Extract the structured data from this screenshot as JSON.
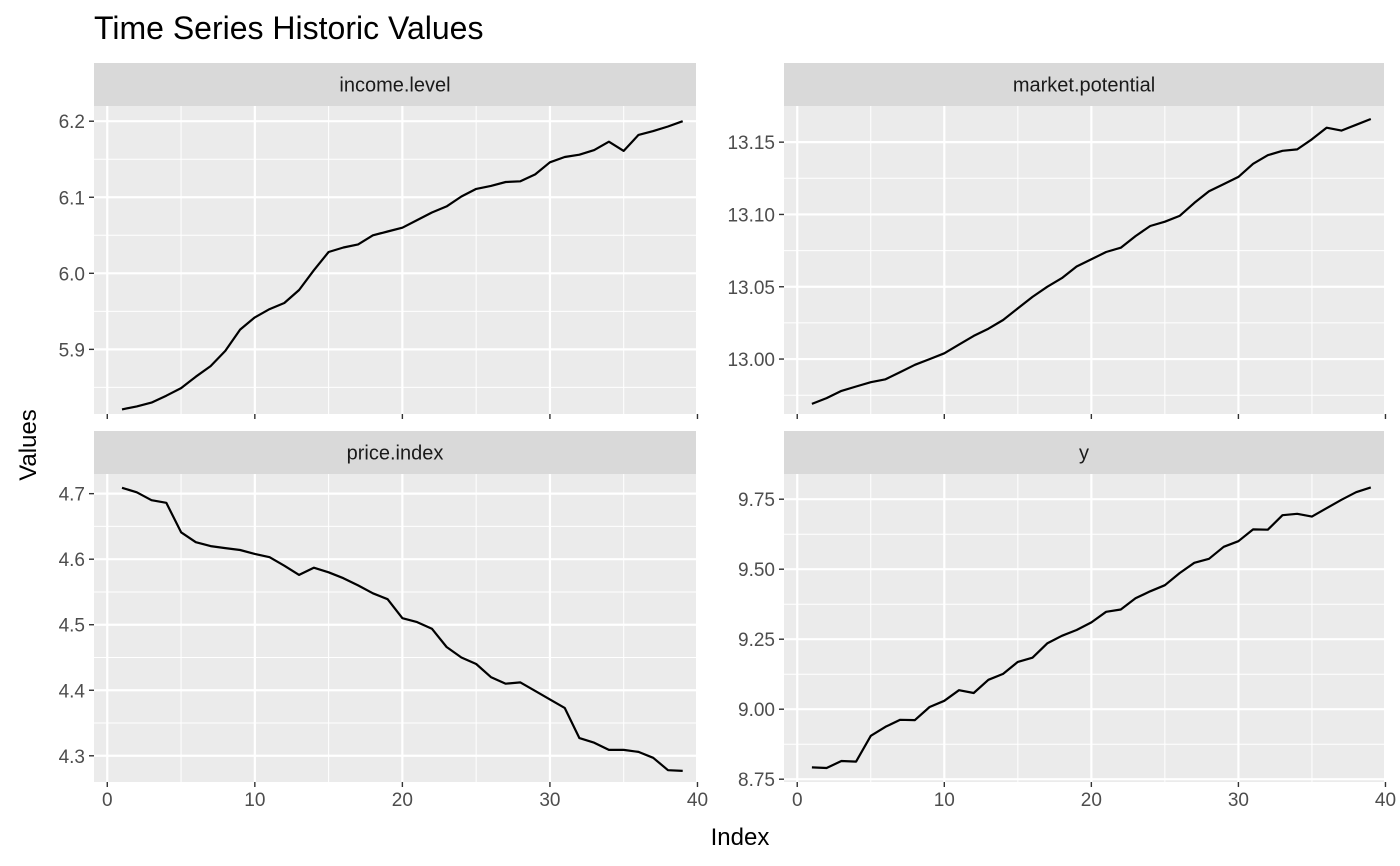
{
  "chart_data": {
    "type": "line",
    "title": "Time Series Historic Values",
    "xlabel": "Index",
    "ylabel": "Values",
    "facet_layout": "2x2",
    "xlim": [
      0,
      40
    ],
    "x_ticks": [
      0,
      10,
      20,
      30,
      40
    ],
    "x_tick_labels": [
      "0",
      "10",
      "20",
      "30",
      "40"
    ],
    "line_color": "#000000",
    "panel_background": "#ebebeb",
    "strip_background": "#d9d9d9",
    "grid": true,
    "legend": "none",
    "x": [
      1,
      2,
      3,
      4,
      5,
      6,
      7,
      8,
      9,
      10,
      11,
      12,
      13,
      14,
      15,
      16,
      17,
      18,
      19,
      20,
      21,
      22,
      23,
      24,
      25,
      26,
      27,
      28,
      29,
      30,
      31,
      32,
      33,
      34,
      35,
      36,
      37,
      38,
      39
    ],
    "panels": [
      {
        "name": "income.level",
        "ylim": [
          5.815,
          6.22
        ],
        "y_ticks": [
          5.9,
          6.0,
          6.1,
          6.2
        ],
        "y_tick_labels": [
          "5.9",
          "6.0",
          "6.1",
          "6.2"
        ],
        "values": [
          5.821,
          5.825,
          5.83,
          5.839,
          5.849,
          5.864,
          5.878,
          5.898,
          5.926,
          5.942,
          5.953,
          5.961,
          5.978,
          6.004,
          6.028,
          6.034,
          6.038,
          6.05,
          6.055,
          6.06,
          6.07,
          6.08,
          6.088,
          6.101,
          6.111,
          6.115,
          6.12,
          6.121,
          6.13,
          6.146,
          6.153,
          6.156,
          6.162,
          6.173,
          6.161,
          6.182,
          6.187,
          6.193,
          6.2
        ]
      },
      {
        "name": "market.potential",
        "ylim": [
          12.962,
          13.175
        ],
        "y_ticks": [
          13.0,
          13.05,
          13.1,
          13.15
        ],
        "y_tick_labels": [
          "13.00",
          "13.05",
          "13.10",
          "13.15"
        ],
        "values": [
          12.969,
          12.973,
          12.978,
          12.981,
          12.984,
          12.986,
          12.991,
          12.996,
          13.0,
          13.004,
          13.01,
          13.016,
          13.021,
          13.027,
          13.035,
          13.043,
          13.05,
          13.056,
          13.064,
          13.069,
          13.074,
          13.077,
          13.085,
          13.092,
          13.095,
          13.099,
          13.108,
          13.116,
          13.121,
          13.126,
          13.135,
          13.141,
          13.144,
          13.145,
          13.152,
          13.16,
          13.158,
          13.162,
          13.166
        ]
      },
      {
        "name": "price.index",
        "ylim": [
          4.26,
          4.73
        ],
        "y_ticks": [
          4.3,
          4.4,
          4.5,
          4.6,
          4.7
        ],
        "y_tick_labels": [
          "4.3",
          "4.4",
          "4.5",
          "4.6",
          "4.7"
        ],
        "values": [
          4.709,
          4.702,
          4.69,
          4.686,
          4.641,
          4.626,
          4.62,
          4.617,
          4.614,
          4.608,
          4.603,
          4.59,
          4.576,
          4.587,
          4.58,
          4.571,
          4.56,
          4.548,
          4.539,
          4.51,
          4.504,
          4.494,
          4.466,
          4.45,
          4.44,
          4.42,
          4.41,
          4.412,
          4.399,
          4.386,
          4.373,
          4.327,
          4.32,
          4.309,
          4.309,
          4.306,
          4.297,
          4.278,
          4.277
        ]
      },
      {
        "name": "y",
        "ylim": [
          8.74,
          9.84
        ],
        "y_ticks": [
          8.75,
          9.0,
          9.25,
          9.5,
          9.75
        ],
        "y_tick_labels": [
          "8.75",
          "9.00",
          "9.25",
          "9.50",
          "9.75"
        ],
        "values": [
          8.792,
          8.79,
          8.815,
          8.813,
          8.905,
          8.937,
          8.962,
          8.961,
          9.008,
          9.03,
          9.068,
          9.058,
          9.105,
          9.126,
          9.169,
          9.184,
          9.235,
          9.262,
          9.283,
          9.31,
          9.348,
          9.356,
          9.396,
          9.421,
          9.443,
          9.486,
          9.523,
          9.537,
          9.58,
          9.6,
          9.642,
          9.641,
          9.693,
          9.698,
          9.688,
          9.718,
          9.748,
          9.775,
          9.792
        ]
      }
    ]
  }
}
